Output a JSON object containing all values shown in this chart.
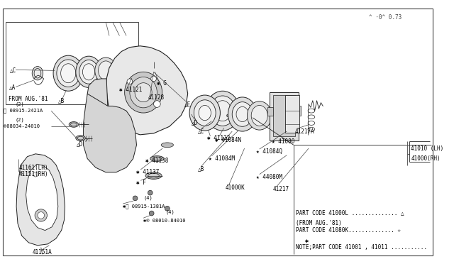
{
  "bg_color": "#ffffff",
  "line_color": "#222222",
  "text_color": "#000000",
  "figsize": [
    6.4,
    3.72
  ],
  "dpi": 100,
  "note_text_1": "NOTE;PART CODE 41001 , 41011 .............. ✱",
  "note_text_2": "     PART CODE 41080K.............. ☆",
  "note_text_3": "     (FROM AUG.'81)",
  "note_text_4": "     PART CODE 41000L .............. △",
  "footer": "^ ·0^ 0.73"
}
